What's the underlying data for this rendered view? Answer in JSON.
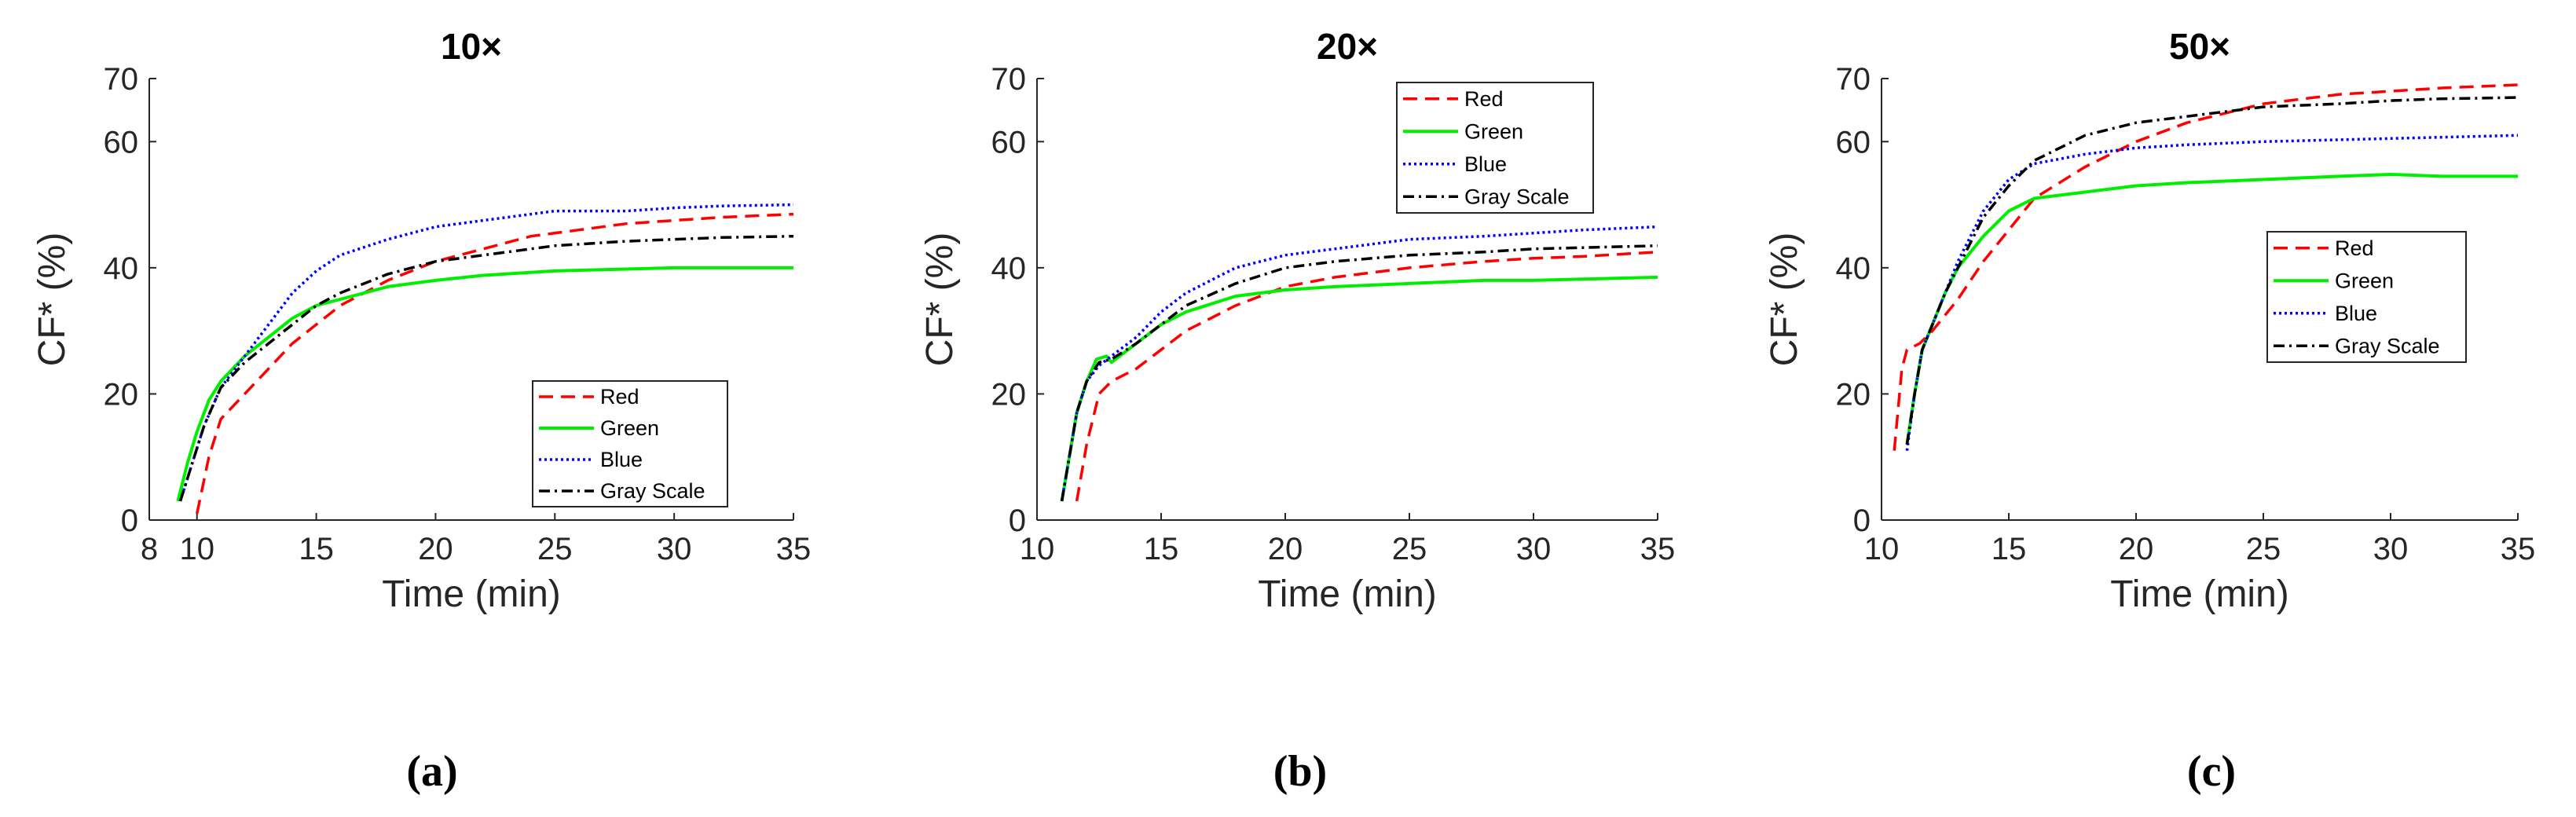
{
  "chart_data": [
    {
      "type": "line",
      "title": "10×",
      "xlabel": "Time (min)",
      "ylabel": "CF* (%)",
      "xlim": [
        8,
        35
      ],
      "ylim": [
        0,
        70
      ],
      "xticks": [
        8,
        10,
        15,
        20,
        25,
        30,
        35
      ],
      "yticks": [
        0,
        20,
        40,
        60,
        70
      ],
      "legend_position": "bottom-right",
      "caption": "(a)",
      "series": [
        {
          "name": "Red",
          "color": "#ff0000",
          "dash": "dashed",
          "x": [
            10,
            10.5,
            11,
            12,
            13,
            14,
            15,
            16,
            18,
            20,
            22,
            24,
            26,
            28,
            30,
            32,
            35
          ],
          "y": [
            1,
            10,
            16,
            20,
            24,
            28,
            31,
            34,
            38,
            41,
            43,
            45,
            46,
            47,
            47.5,
            48,
            48.5
          ]
        },
        {
          "name": "Green",
          "color": "#00ee00",
          "dash": "solid",
          "x": [
            9.2,
            9.6,
            10,
            10.5,
            11,
            12,
            13,
            14,
            15,
            16,
            18,
            20,
            22,
            25,
            28,
            30,
            32,
            35
          ],
          "y": [
            3,
            9,
            14,
            19,
            22,
            26,
            29,
            32,
            34,
            35,
            37,
            38,
            38.8,
            39.5,
            39.8,
            40,
            40,
            40
          ]
        },
        {
          "name": "Blue",
          "color": "#0000ff",
          "dash": "dotted",
          "x": [
            9.3,
            9.8,
            10.3,
            11,
            12,
            13,
            14,
            15,
            16,
            18,
            20,
            22,
            25,
            28,
            30,
            32,
            35
          ],
          "y": [
            3,
            9,
            15,
            21,
            26,
            31,
            36,
            39.5,
            42,
            44.5,
            46.5,
            47.5,
            49,
            49,
            49.5,
            49.8,
            50
          ]
        },
        {
          "name": "Gray Scale",
          "color": "#000000",
          "dash": "dashdot",
          "x": [
            9.3,
            9.8,
            10.3,
            11,
            12,
            13,
            14,
            15,
            16,
            18,
            20,
            22,
            25,
            28,
            30,
            32,
            35
          ],
          "y": [
            3,
            9,
            15,
            21,
            25,
            28,
            31,
            34,
            36,
            39,
            41,
            42,
            43.5,
            44.2,
            44.5,
            44.8,
            45
          ]
        }
      ]
    },
    {
      "type": "line",
      "title": "20×",
      "xlabel": "Time (min)",
      "ylabel": "CF* (%)",
      "xlim": [
        10,
        35
      ],
      "ylim": [
        0,
        70
      ],
      "xticks": [
        10,
        15,
        20,
        25,
        30,
        35
      ],
      "yticks": [
        0,
        20,
        40,
        60,
        70
      ],
      "legend_position": "top-right",
      "caption": "(b)",
      "series": [
        {
          "name": "Red",
          "color": "#ff0000",
          "dash": "dashed",
          "x": [
            11.6,
            12,
            12.5,
            13,
            14,
            15,
            16,
            18,
            20,
            22,
            25,
            28,
            30,
            32,
            35
          ],
          "y": [
            3,
            12,
            20,
            22,
            24,
            27,
            30,
            34,
            37,
            38.5,
            40,
            41,
            41.5,
            41.8,
            42.5
          ]
        },
        {
          "name": "Green",
          "color": "#00ee00",
          "dash": "solid",
          "x": [
            11,
            11.3,
            11.6,
            12,
            12.4,
            12.8,
            13,
            14,
            15,
            16,
            18,
            20,
            22,
            25,
            28,
            30,
            32,
            35
          ],
          "y": [
            3,
            10,
            17,
            22,
            25.5,
            26,
            25,
            28,
            31,
            33,
            35.5,
            36.5,
            37,
            37.5,
            38,
            38,
            38.2,
            38.5
          ]
        },
        {
          "name": "Blue",
          "color": "#0000ff",
          "dash": "dotted",
          "x": [
            11,
            11.3,
            11.6,
            12,
            12.5,
            13,
            14,
            15,
            16,
            18,
            20,
            22,
            25,
            28,
            30,
            32,
            35
          ],
          "y": [
            3,
            10,
            17,
            22,
            24.5,
            26,
            29,
            33,
            36,
            40,
            42,
            43,
            44.5,
            45,
            45.5,
            46,
            46.5
          ]
        },
        {
          "name": "Gray Scale",
          "color": "#000000",
          "dash": "dashdot",
          "x": [
            11,
            11.3,
            11.6,
            12,
            12.5,
            13,
            14,
            15,
            16,
            18,
            20,
            22,
            25,
            28,
            30,
            32,
            35
          ],
          "y": [
            3,
            10,
            17,
            22,
            25,
            25.5,
            28,
            31,
            34,
            37.5,
            40,
            41,
            42,
            42.5,
            43,
            43.2,
            43.5
          ]
        }
      ]
    },
    {
      "type": "line",
      "title": "50×",
      "xlabel": "Time (min)",
      "ylabel": "CF* (%)",
      "xlim": [
        10,
        35
      ],
      "ylim": [
        0,
        70
      ],
      "xticks": [
        10,
        15,
        20,
        25,
        30,
        35
      ],
      "yticks": [
        0,
        20,
        40,
        60,
        70
      ],
      "legend_position": "middle-right",
      "caption": "(c)",
      "series": [
        {
          "name": "Red",
          "color": "#ff0000",
          "dash": "dashed",
          "x": [
            10.5,
            10.8,
            11,
            11.5,
            12,
            13,
            14,
            15,
            16,
            18,
            20,
            22,
            25,
            28,
            30,
            32,
            35
          ],
          "y": [
            11,
            24,
            27,
            28,
            30,
            35,
            41,
            46,
            51,
            56,
            60,
            63,
            66,
            67.5,
            68,
            68.5,
            69
          ]
        },
        {
          "name": "Green",
          "color": "#00ee00",
          "dash": "solid",
          "x": [
            11,
            11.3,
            11.6,
            12,
            12.5,
            13,
            14,
            15,
            16,
            18,
            20,
            22,
            25,
            28,
            30,
            32,
            35
          ],
          "y": [
            12,
            20,
            27,
            31,
            36,
            40,
            45,
            49,
            51,
            52,
            53,
            53.5,
            54,
            54.5,
            54.8,
            54.5,
            54.5
          ]
        },
        {
          "name": "Blue",
          "color": "#0000ff",
          "dash": "dotted",
          "x": [
            11,
            11.3,
            11.6,
            12,
            12.5,
            13,
            14,
            15,
            16,
            18,
            20,
            22,
            25,
            28,
            30,
            32,
            35
          ],
          "y": [
            11,
            20,
            27,
            31,
            36,
            41,
            49,
            54,
            56.5,
            58,
            59,
            59.5,
            60,
            60.3,
            60.5,
            60.7,
            61
          ]
        },
        {
          "name": "Gray Scale",
          "color": "#000000",
          "dash": "dashdot",
          "x": [
            11,
            11.3,
            11.6,
            12,
            12.5,
            13,
            14,
            15,
            16,
            18,
            20,
            22,
            25,
            28,
            30,
            32,
            35
          ],
          "y": [
            12,
            20,
            27,
            31,
            36,
            40,
            48,
            53,
            57,
            61,
            63,
            64,
            65.5,
            66,
            66.5,
            66.8,
            67
          ]
        }
      ]
    }
  ]
}
